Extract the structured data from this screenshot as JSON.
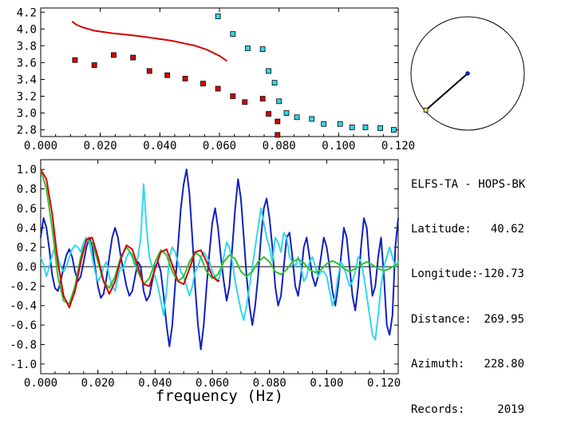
{
  "info": {
    "title": "ELFS-TA - HOPS-BK",
    "rows": [
      {
        "label": "Latitude:",
        "value": "40.62"
      },
      {
        "label": "Longitude:",
        "value": "-120.73"
      },
      {
        "label": "Distance:",
        "value": "269.95"
      },
      {
        "label": "Azimuth:",
        "value": "228.80"
      },
      {
        "label": "Records:",
        "value": "2019"
      }
    ]
  },
  "colors": {
    "red": "#d40000",
    "cyan": "#30d8e8",
    "blue": "#1020c0",
    "green": "#30c030",
    "axis": "#000000"
  },
  "chart_data": [
    {
      "type": "scatter",
      "title": "",
      "xlabel": "",
      "ylabel": "",
      "xlim": [
        0.0,
        0.12
      ],
      "ylim": [
        2.72,
        4.25
      ],
      "xticks": [
        "0.000",
        "0.020",
        "0.040",
        "0.060",
        "0.080",
        "0.100",
        "0.120"
      ],
      "yticks": [
        "2.8",
        "3.0",
        "3.2",
        "3.4",
        "3.6",
        "3.8",
        "4.0",
        "4.2"
      ],
      "xtick_values": [
        0.0,
        0.02,
        0.04,
        0.06,
        0.08,
        0.1,
        0.12
      ],
      "ytick_values": [
        2.8,
        3.0,
        3.2,
        3.4,
        3.6,
        3.8,
        4.0,
        4.2
      ],
      "series": [
        {
          "color": "#d40000",
          "style": "line",
          "x": [
            0.0105,
            0.012,
            0.014,
            0.016,
            0.018,
            0.02,
            0.024,
            0.028,
            0.032,
            0.036,
            0.04,
            0.044,
            0.048,
            0.052,
            0.056,
            0.06,
            0.0625
          ],
          "y": [
            4.09,
            4.05,
            4.02,
            4.0,
            3.98,
            3.97,
            3.95,
            3.935,
            3.92,
            3.9,
            3.88,
            3.86,
            3.83,
            3.8,
            3.75,
            3.68,
            3.62
          ]
        },
        {
          "color": "#d40000",
          "style": "markers",
          "x": [
            0.0115,
            0.018,
            0.0245,
            0.031,
            0.0365,
            0.0425,
            0.0485,
            0.0545,
            0.0595,
            0.0645,
            0.0685,
            0.0745,
            0.0765,
            0.0795,
            0.0795
          ],
          "y": [
            3.63,
            3.57,
            3.69,
            3.66,
            3.5,
            3.45,
            3.41,
            3.35,
            3.29,
            3.2,
            3.13,
            3.17,
            2.99,
            2.9,
            2.74
          ]
        },
        {
          "color": "#30d8e8",
          "style": "markers",
          "x": [
            0.0595,
            0.0645,
            0.0695,
            0.0745,
            0.0765,
            0.0785,
            0.08,
            0.0825,
            0.086,
            0.091,
            0.095,
            0.1005,
            0.1045,
            0.109,
            0.114,
            0.1185
          ],
          "y": [
            4.15,
            3.94,
            3.77,
            3.76,
            3.5,
            3.36,
            3.14,
            3.0,
            2.95,
            2.93,
            2.87,
            2.87,
            2.83,
            2.83,
            2.82,
            2.8
          ]
        }
      ]
    },
    {
      "type": "line",
      "title": "",
      "xlabel": "frequency (Hz)",
      "ylabel": "",
      "xlim": [
        0.0,
        0.125
      ],
      "ylim": [
        -1.1,
        1.1
      ],
      "xticks": [
        "0.000",
        "0.020",
        "0.040",
        "0.060",
        "0.080",
        "0.100",
        "0.120"
      ],
      "yticks": [
        "1.0",
        "0.8",
        "0.6",
        "0.4",
        "0.2",
        "0.0",
        "-0.2",
        "-0.4",
        "-0.6",
        "-0.8",
        "-1.0"
      ],
      "xtick_values": [
        0.0,
        0.02,
        0.04,
        0.06,
        0.08,
        0.1,
        0.12
      ],
      "ytick_values": [
        1.0,
        0.8,
        0.6,
        0.4,
        0.2,
        0.0,
        -0.2,
        -0.4,
        -0.6,
        -0.8,
        -1.0
      ],
      "series": [
        {
          "color": "#1020c0",
          "x": [
            0.0,
            0.001,
            0.002,
            0.003,
            0.004,
            0.005,
            0.006,
            0.007,
            0.008,
            0.009,
            0.01,
            0.011,
            0.012,
            0.013,
            0.014,
            0.015,
            0.016,
            0.017,
            0.018,
            0.019,
            0.02,
            0.021,
            0.022,
            0.023,
            0.024,
            0.025,
            0.026,
            0.027,
            0.028,
            0.029,
            0.03,
            0.031,
            0.032,
            0.033,
            0.034,
            0.035,
            0.036,
            0.037,
            0.038,
            0.039,
            0.04,
            0.041,
            0.042,
            0.043,
            0.044,
            0.045,
            0.046,
            0.047,
            0.048,
            0.049,
            0.05,
            0.051,
            0.052,
            0.053,
            0.054,
            0.055,
            0.056,
            0.057,
            0.058,
            0.059,
            0.06,
            0.061,
            0.062,
            0.063,
            0.064,
            0.065,
            0.066,
            0.067,
            0.068,
            0.069,
            0.07,
            0.071,
            0.072,
            0.073,
            0.074,
            0.075,
            0.076,
            0.077,
            0.078,
            0.079,
            0.08,
            0.081,
            0.082,
            0.083,
            0.084,
            0.085,
            0.086,
            0.087,
            0.088,
            0.089,
            0.09,
            0.091,
            0.092,
            0.093,
            0.094,
            0.095,
            0.096,
            0.097,
            0.098,
            0.099,
            0.1,
            0.101,
            0.102,
            0.103,
            0.104,
            0.105,
            0.106,
            0.107,
            0.108,
            0.109,
            0.11,
            0.111,
            0.112,
            0.113,
            0.114,
            0.115,
            0.116,
            0.117,
            0.118,
            0.119,
            0.12,
            0.121,
            0.122,
            0.123,
            0.124,
            0.125
          ],
          "y": [
            0.3,
            0.5,
            0.4,
            0.18,
            -0.08,
            -0.22,
            -0.25,
            -0.15,
            0.0,
            0.12,
            0.18,
            0.1,
            -0.05,
            -0.15,
            -0.1,
            0.05,
            0.2,
            0.3,
            0.22,
            0.0,
            -0.2,
            -0.32,
            -0.28,
            -0.12,
            0.1,
            0.3,
            0.4,
            0.3,
            0.1,
            -0.05,
            -0.2,
            -0.3,
            -0.25,
            -0.1,
            0.05,
            0.0,
            -0.25,
            -0.35,
            -0.3,
            -0.15,
            0.0,
            0.05,
            -0.05,
            -0.3,
            -0.6,
            -0.82,
            -0.6,
            -0.2,
            0.2,
            0.6,
            0.85,
            1.0,
            0.75,
            0.3,
            -0.2,
            -0.6,
            -0.85,
            -0.6,
            -0.2,
            0.15,
            0.45,
            0.6,
            0.4,
            0.1,
            -0.15,
            -0.35,
            -0.2,
            0.2,
            0.6,
            0.9,
            0.7,
            0.3,
            -0.1,
            -0.4,
            -0.6,
            -0.4,
            -0.1,
            0.3,
            0.6,
            0.7,
            0.5,
            0.2,
            -0.2,
            -0.4,
            -0.3,
            0.0,
            0.3,
            0.35,
            0.1,
            -0.2,
            -0.3,
            -0.1,
            0.2,
            0.3,
            0.1,
            -0.1,
            -0.2,
            -0.1,
            0.1,
            0.3,
            0.2,
            0.0,
            -0.25,
            -0.4,
            -0.2,
            0.1,
            0.4,
            0.3,
            0.0,
            -0.3,
            -0.45,
            -0.2,
            0.2,
            0.5,
            0.4,
            0.0,
            -0.3,
            -0.2,
            0.1,
            0.3,
            -0.1,
            -0.6,
            -0.7,
            -0.5,
            0.2,
            0.5
          ]
        },
        {
          "color": "#30d8e8",
          "x": [
            0.0,
            0.001,
            0.002,
            0.003,
            0.004,
            0.005,
            0.006,
            0.007,
            0.008,
            0.009,
            0.01,
            0.011,
            0.012,
            0.013,
            0.014,
            0.015,
            0.016,
            0.017,
            0.018,
            0.019,
            0.02,
            0.021,
            0.022,
            0.023,
            0.024,
            0.025,
            0.026,
            0.027,
            0.028,
            0.029,
            0.03,
            0.031,
            0.032,
            0.033,
            0.034,
            0.035,
            0.036,
            0.037,
            0.038,
            0.039,
            0.04,
            0.041,
            0.042,
            0.043,
            0.044,
            0.045,
            0.046,
            0.047,
            0.048,
            0.049,
            0.05,
            0.051,
            0.052,
            0.053,
            0.054,
            0.055,
            0.056,
            0.057,
            0.058,
            0.059,
            0.06,
            0.061,
            0.062,
            0.063,
            0.064,
            0.065,
            0.066,
            0.067,
            0.068,
            0.069,
            0.07,
            0.071,
            0.072,
            0.073,
            0.074,
            0.075,
            0.076,
            0.077,
            0.078,
            0.079,
            0.08,
            0.081,
            0.082,
            0.083,
            0.084,
            0.085,
            0.086,
            0.087,
            0.088,
            0.089,
            0.09,
            0.091,
            0.092,
            0.093,
            0.094,
            0.095,
            0.096,
            0.097,
            0.098,
            0.099,
            0.1,
            0.101,
            0.102,
            0.103,
            0.104,
            0.105,
            0.106,
            0.107,
            0.108,
            0.109,
            0.11,
            0.111,
            0.112,
            0.113,
            0.114,
            0.115,
            0.116,
            0.117,
            0.118,
            0.119,
            0.12,
            0.121,
            0.122,
            0.123,
            0.124,
            0.125
          ],
          "y": [
            0.1,
            0.02,
            -0.1,
            0.0,
            0.12,
            0.2,
            0.1,
            0.0,
            -0.05,
            0.0,
            0.1,
            0.18,
            0.22,
            0.2,
            0.15,
            0.25,
            0.3,
            0.25,
            0.1,
            -0.05,
            -0.15,
            -0.1,
            0.0,
            0.05,
            -0.1,
            -0.2,
            -0.25,
            -0.1,
            0.0,
            -0.02,
            0.1,
            0.15,
            0.1,
            0.0,
            0.1,
            0.3,
            0.85,
            0.4,
            0.1,
            0.0,
            -0.1,
            -0.2,
            -0.35,
            -0.5,
            -0.25,
            0.1,
            0.2,
            0.15,
            0.05,
            -0.05,
            -0.1,
            -0.2,
            -0.3,
            -0.2,
            -0.05,
            0.0,
            0.1,
            0.15,
            0.1,
            0.05,
            -0.05,
            -0.1,
            -0.15,
            -0.05,
            0.1,
            0.25,
            0.2,
            0.05,
            -0.15,
            -0.3,
            -0.45,
            -0.55,
            -0.4,
            -0.2,
            0.0,
            0.2,
            0.4,
            0.6,
            0.45,
            0.3,
            0.2,
            0.05,
            0.3,
            0.25,
            0.15,
            0.35,
            0.3,
            0.1,
            0.05,
            0.0,
            0.1,
            0.0,
            -0.15,
            -0.1,
            0.05,
            0.1,
            0.0,
            -0.1,
            -0.05,
            -0.05,
            -0.1,
            -0.25,
            -0.4,
            -0.3,
            -0.1,
            0.05,
            0.0,
            -0.1,
            -0.2,
            -0.15,
            -0.05,
            0.1,
            0.05,
            -0.1,
            -0.3,
            -0.5,
            -0.7,
            -0.75,
            -0.5,
            -0.2,
            0.0,
            0.1,
            0.2,
            0.1,
            0.0,
            0.05
          ]
        },
        {
          "color": "#30c030",
          "x": [
            0.0,
            0.002,
            0.004,
            0.006,
            0.008,
            0.01,
            0.012,
            0.014,
            0.016,
            0.018,
            0.02,
            0.022,
            0.024,
            0.026,
            0.028,
            0.03,
            0.032,
            0.034,
            0.036,
            0.038,
            0.04,
            0.042,
            0.044,
            0.046,
            0.048,
            0.05,
            0.052,
            0.054,
            0.056,
            0.058,
            0.06,
            0.062,
            0.064,
            0.066,
            0.068,
            0.07,
            0.072,
            0.074,
            0.076,
            0.078,
            0.08,
            0.082,
            0.084,
            0.086,
            0.088,
            0.09,
            0.092,
            0.094,
            0.096,
            0.098,
            0.1,
            0.102,
            0.104,
            0.106,
            0.108,
            0.11,
            0.112,
            0.114,
            0.116,
            0.118,
            0.12,
            0.122,
            0.124,
            0.125
          ],
          "y": [
            1.0,
            0.8,
            0.4,
            -0.1,
            -0.35,
            -0.38,
            -0.2,
            0.1,
            0.28,
            0.25,
            0.05,
            -0.15,
            -0.22,
            -0.1,
            0.1,
            0.2,
            0.12,
            -0.05,
            -0.18,
            -0.12,
            0.05,
            0.17,
            0.12,
            -0.05,
            -0.15,
            -0.1,
            0.05,
            0.15,
            0.1,
            -0.05,
            -0.12,
            -0.08,
            0.05,
            0.12,
            0.08,
            -0.05,
            -0.1,
            -0.05,
            0.05,
            0.1,
            0.05,
            -0.05,
            -0.08,
            -0.03,
            0.05,
            0.08,
            0.04,
            -0.03,
            -0.06,
            -0.03,
            0.03,
            0.06,
            0.03,
            -0.02,
            -0.05,
            -0.02,
            0.02,
            0.05,
            0.02,
            -0.02,
            -0.04,
            -0.02,
            0.02,
            0.03
          ]
        },
        {
          "color": "#d40000",
          "x": [
            0.0,
            0.002,
            0.004,
            0.006,
            0.008,
            0.01,
            0.012,
            0.014,
            0.016,
            0.018,
            0.02,
            0.022,
            0.024,
            0.026,
            0.028,
            0.03,
            0.032,
            0.034,
            0.036,
            0.038,
            0.04,
            0.042,
            0.044,
            0.046,
            0.048,
            0.05,
            0.052,
            0.054,
            0.056,
            0.058,
            0.06,
            0.062,
            0.0625
          ],
          "y": [
            1.0,
            0.9,
            0.55,
            0.05,
            -0.3,
            -0.42,
            -0.25,
            0.05,
            0.28,
            0.3,
            0.1,
            -0.15,
            -0.28,
            -0.15,
            0.08,
            0.22,
            0.18,
            0.0,
            -0.18,
            -0.2,
            -0.02,
            0.15,
            0.18,
            0.02,
            -0.15,
            -0.18,
            -0.02,
            0.15,
            0.17,
            0.05,
            -0.1,
            -0.15,
            -0.14
          ]
        }
      ]
    }
  ],
  "polar": {
    "azimuth_deg": 228.8,
    "distance_fraction": 1.0
  }
}
